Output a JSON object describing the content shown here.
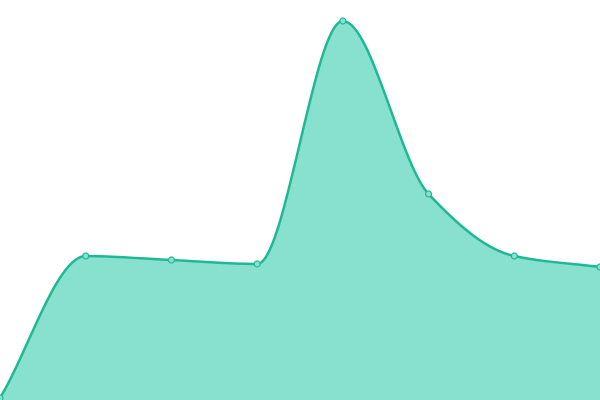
{
  "chart_data": {
    "type": "area",
    "categories": [
      null,
      null,
      null,
      null,
      null,
      null,
      null,
      null
    ],
    "series": [
      {
        "color": "#1fb894",
        "fill": "#88e0cf",
        "values": [
          2,
          144,
          140,
          136,
          379,
          206,
          144,
          133
        ]
      }
    ],
    "ylim": [
      0,
      400
    ],
    "grid": false
  }
}
